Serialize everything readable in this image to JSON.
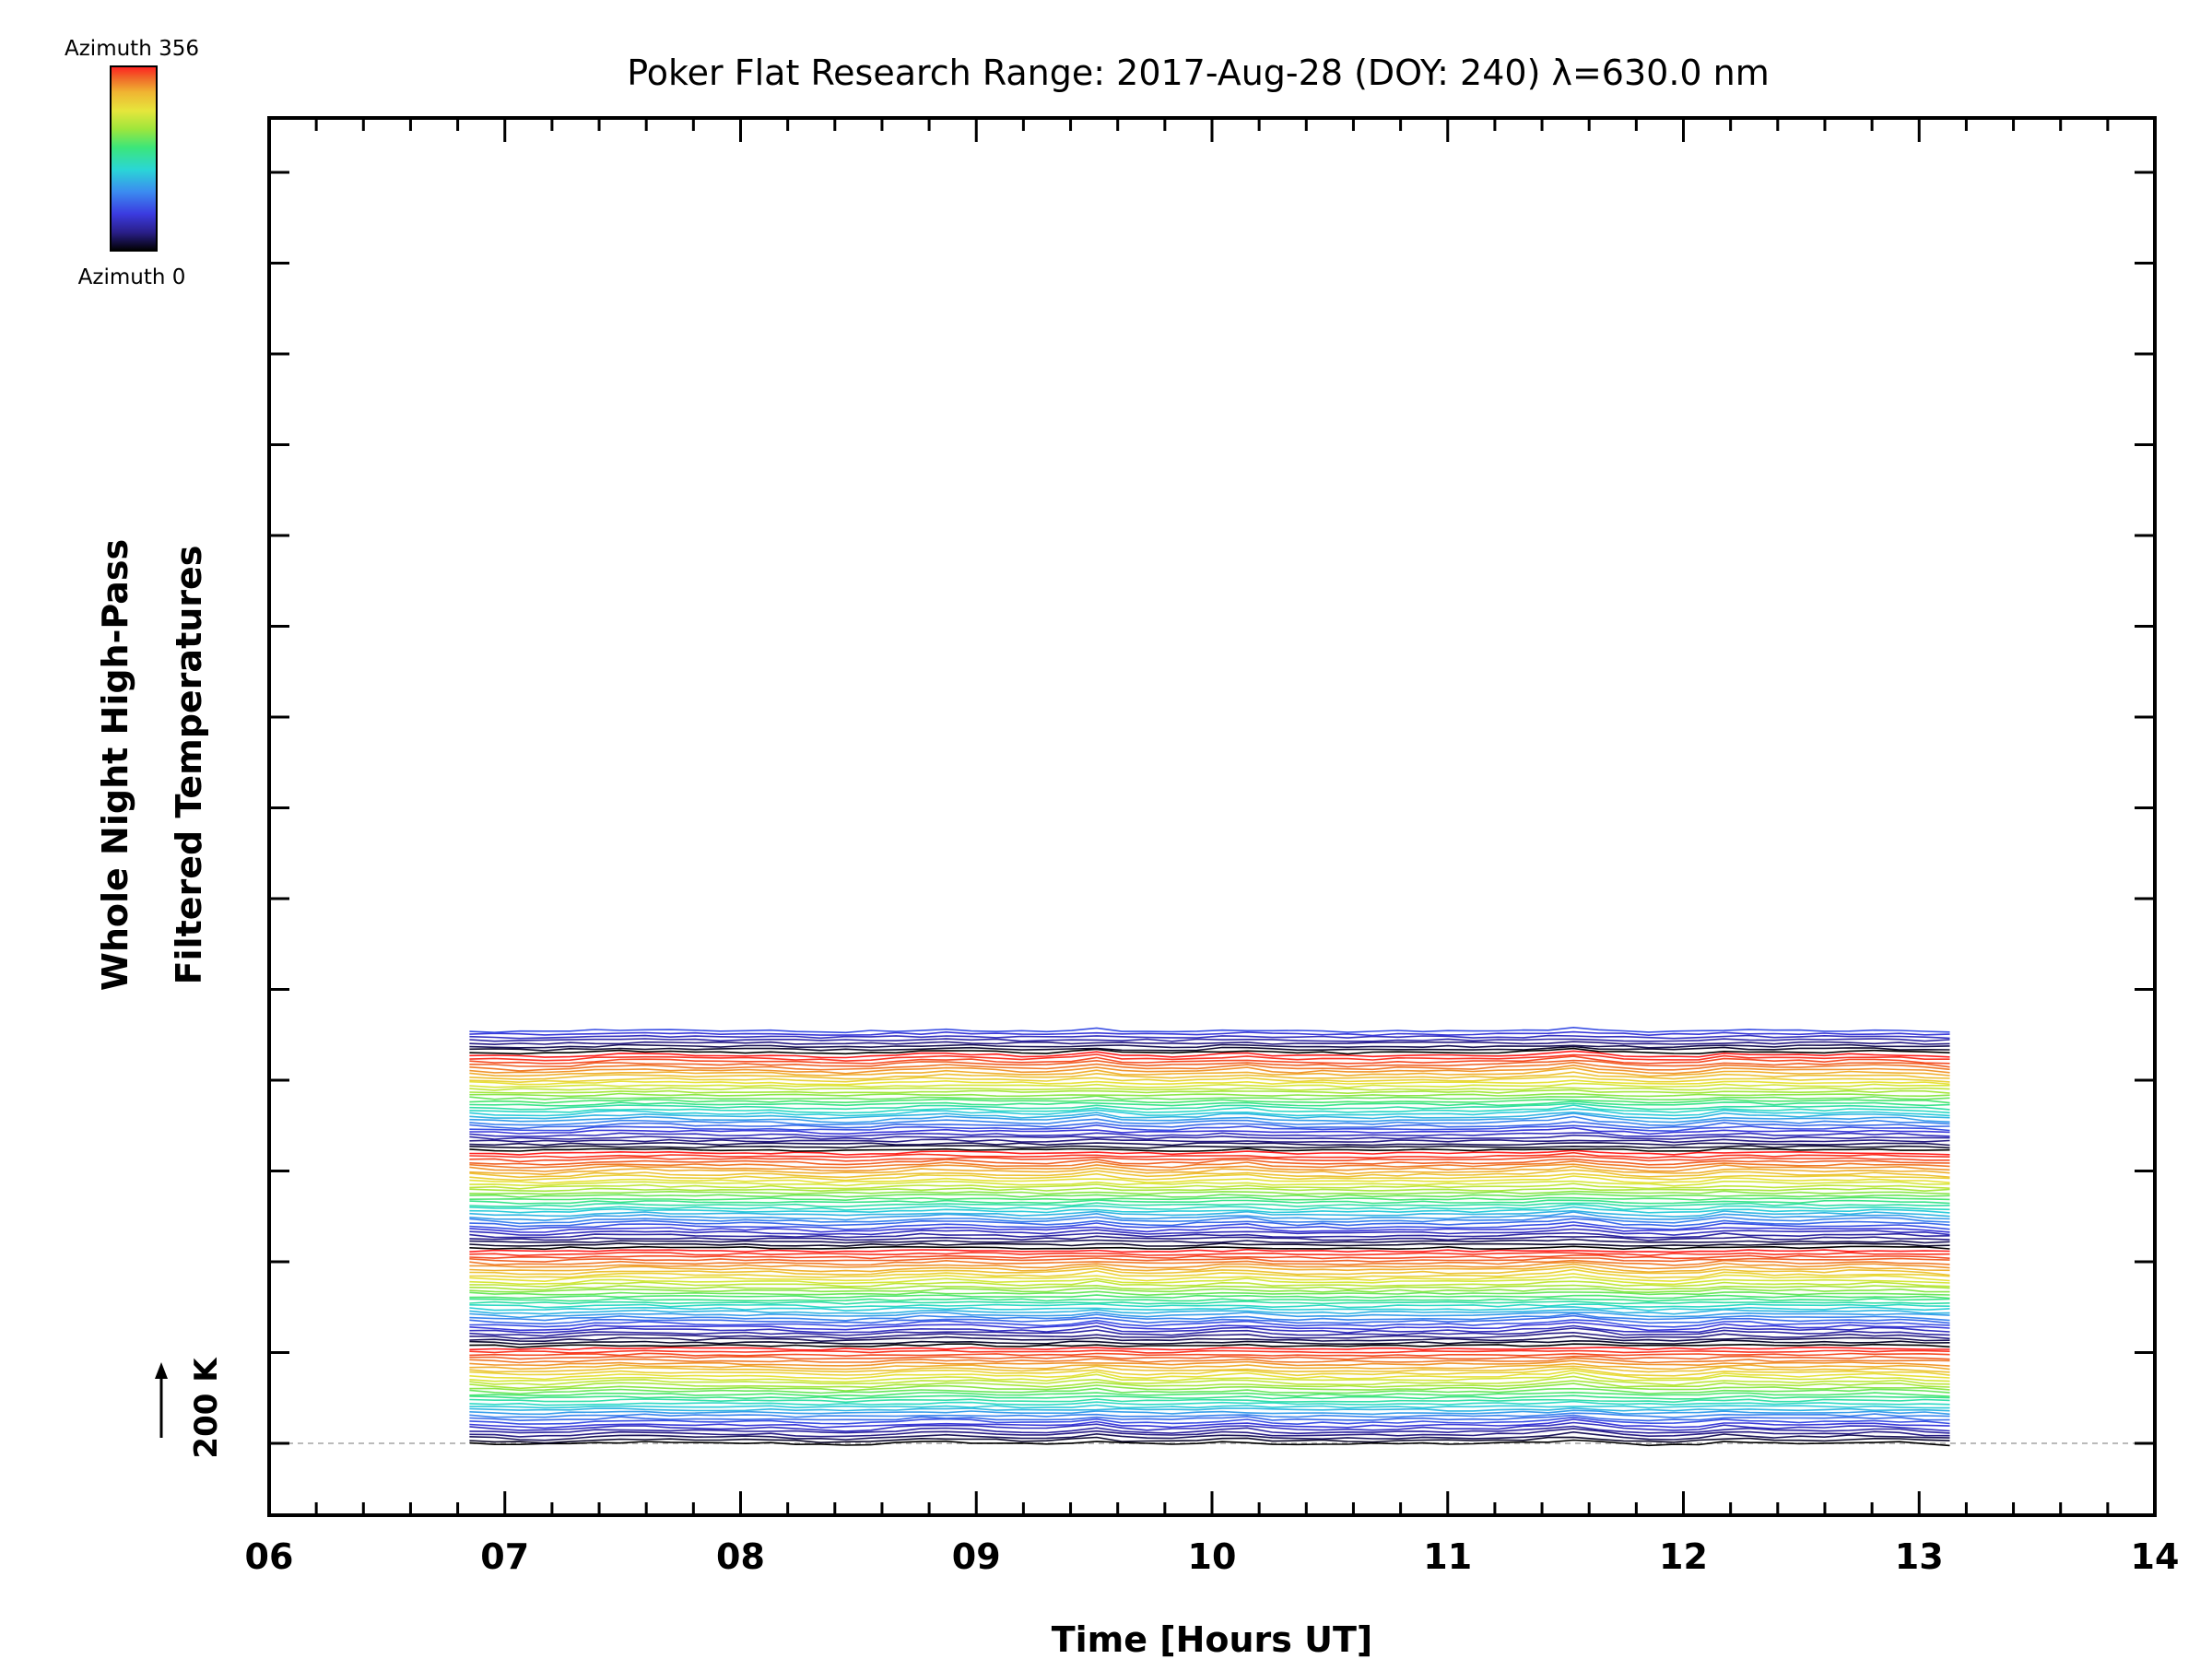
{
  "chart_data": {
    "type": "line",
    "title": "Poker Flat Research Range: 2017-Aug-28 (DOY: 240) λ=630.0 nm",
    "xlabel": "Time [Hours UT]",
    "ylabel_line1": "Whole Night High-Pass",
    "ylabel_line2": "Filtered Temperatures",
    "xlim": [
      6,
      14
    ],
    "x_ticks": [
      "06",
      "07",
      "08",
      "09",
      "10",
      "11",
      "12",
      "13",
      "14"
    ],
    "x_start": 6.85,
    "x_end": 13.13,
    "n_points": 60,
    "n_traces": 136,
    "traces_per_colour_cycle": 32,
    "azimuth_range": [
      0,
      356
    ],
    "trace_offset_K": 34,
    "scale_bar_label": "200 K",
    "colorbar": {
      "top_label": "Azimuth 356",
      "bottom_label": "Azimuth 0"
    },
    "colormap": [
      "#000000",
      "#2a1f8a",
      "#3b3be0",
      "#3b8cf0",
      "#2ad6d6",
      "#3ce67a",
      "#9ee63c",
      "#e6e63c",
      "#f0b432",
      "#f06428",
      "#ff2020"
    ],
    "baseline_color": "#bbbbbb",
    "features": [
      {
        "hour": 9.5,
        "amplitude_K": 4.5
      },
      {
        "hour": 10.3,
        "amplitude_K": 3.5
      },
      {
        "hour": 11.55,
        "amplitude_K": 3.5
      },
      {
        "hour": 12.2,
        "amplitude_K": 3.0
      }
    ]
  }
}
